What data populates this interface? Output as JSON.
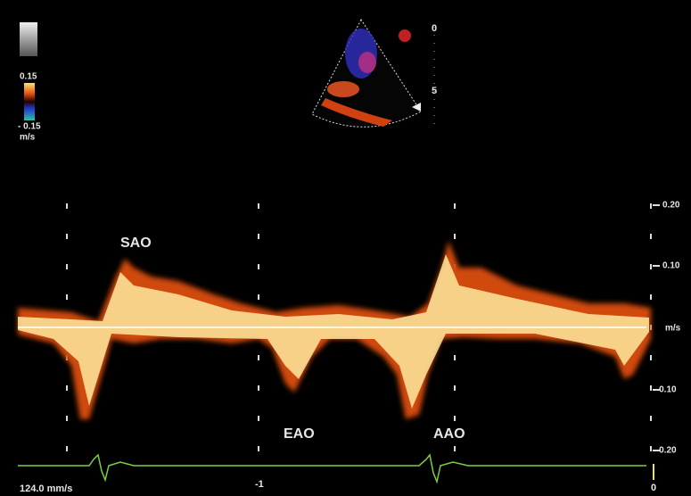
{
  "color_scale": {
    "max": "0.15",
    "min": "- 0.15",
    "unit": "m/s"
  },
  "depth_scale": {
    "ticks": [
      "0",
      "5"
    ]
  },
  "velocity_axis": {
    "ticks": [
      "0.20",
      "0.10",
      "m/s",
      "- 0.10",
      "- 0.20"
    ]
  },
  "annotations": [
    "SAO",
    "EAO",
    "AAO"
  ],
  "footer": {
    "sweep_speed": "124.0 mm/s",
    "time_ticks": [
      "-1",
      "0"
    ]
  }
}
